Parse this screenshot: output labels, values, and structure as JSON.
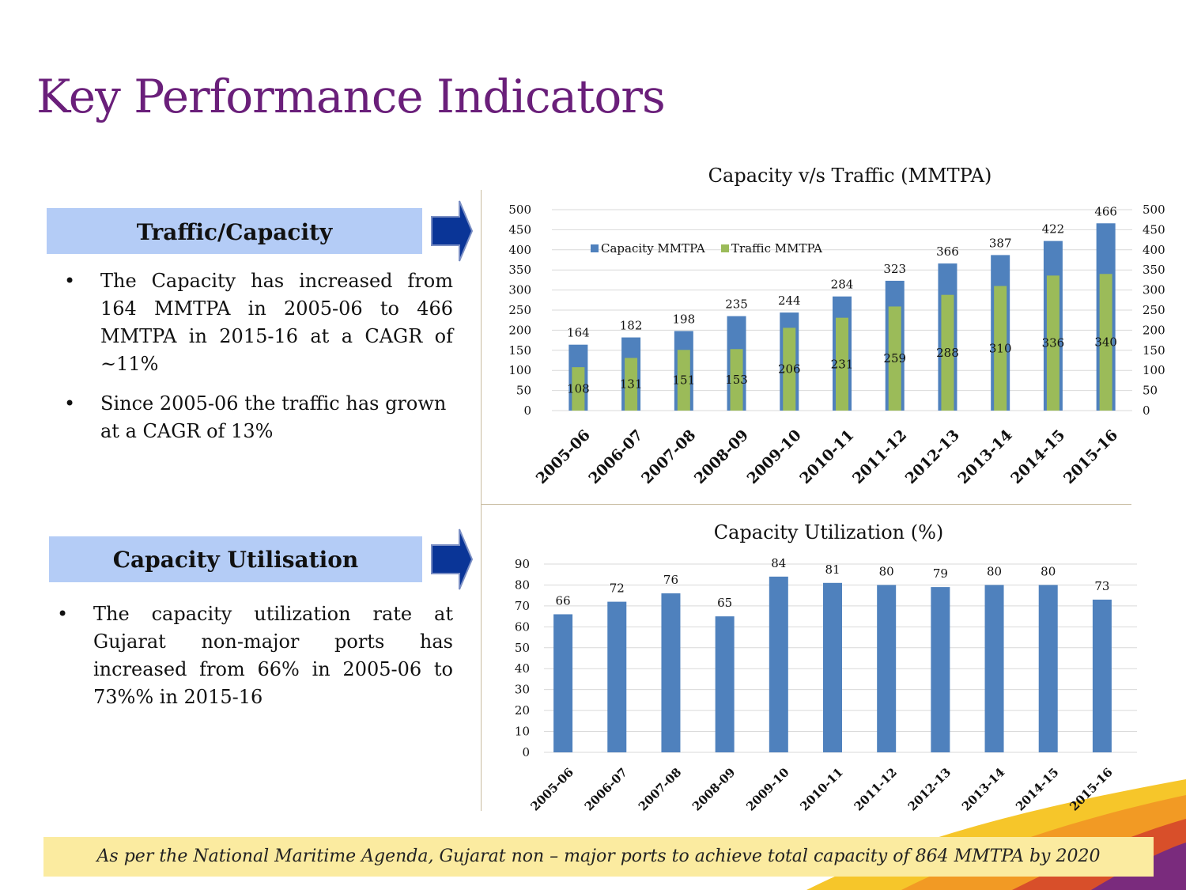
{
  "title": "Key Performance Indicators",
  "sections": {
    "traffic": {
      "header": "Traffic/Capacity",
      "bullets": [
        "The Capacity has increased from 164 MMTPA in 2005-06 to 466 MMTPA in 2015-16 at a CAGR of ~11%",
        "Since 2005-06 the traffic has grown at a CAGR of 13%"
      ]
    },
    "utilisation": {
      "header": "Capacity Utilisation",
      "bullets": [
        "The capacity utilization rate at Gujarat non-major ports has increased from 66% in 2005-06 to 73%% in 2015-16"
      ]
    }
  },
  "footer": "As per the National Maritime Agenda, Gujarat non – major ports to achieve total capacity of 864 MMTPA by 2020",
  "colors": {
    "title": "#6a1f7a",
    "header_bg": "#b4ccf6",
    "arrow": "#0a3597",
    "capacity": "#4f81bd",
    "traffic": "#9bbb59",
    "footer_bg": "#fbeba0"
  },
  "chart_data": [
    {
      "type": "bar",
      "title": "Capacity v/s Traffic (MMTPA)",
      "categories": [
        "2005-06",
        "2006-07",
        "2007-08",
        "2008-09",
        "2009-10",
        "2010-11",
        "2011-12",
        "2012-13",
        "2013-14",
        "2014-15",
        "2015-16"
      ],
      "series": [
        {
          "name": "Capacity MMTPA",
          "values": [
            164,
            182,
            198,
            235,
            244,
            284,
            323,
            366,
            387,
            422,
            466
          ]
        },
        {
          "name": "Traffic MMTPA",
          "values": [
            108,
            131,
            151,
            153,
            206,
            231,
            259,
            288,
            310,
            336,
            340
          ]
        }
      ],
      "ylim": [
        0,
        500
      ],
      "yticks": [
        0,
        50,
        100,
        150,
        200,
        250,
        300,
        350,
        400,
        450,
        500
      ],
      "secondary_axis": true,
      "legend": "top-left",
      "grid": true
    },
    {
      "type": "bar",
      "title": "Capacity Utilization (%)",
      "categories": [
        "2005-06",
        "2006-07",
        "2007-08",
        "2008-09",
        "2009-10",
        "2010-11",
        "2011-12",
        "2012-13",
        "2013-14",
        "2014-15",
        "2015-16"
      ],
      "values": [
        66,
        72,
        76,
        65,
        84,
        81,
        80,
        79,
        80,
        80,
        73
      ],
      "ylim": [
        0,
        90
      ],
      "yticks": [
        0,
        10,
        20,
        30,
        40,
        50,
        60,
        70,
        80,
        90
      ],
      "grid": true
    }
  ]
}
